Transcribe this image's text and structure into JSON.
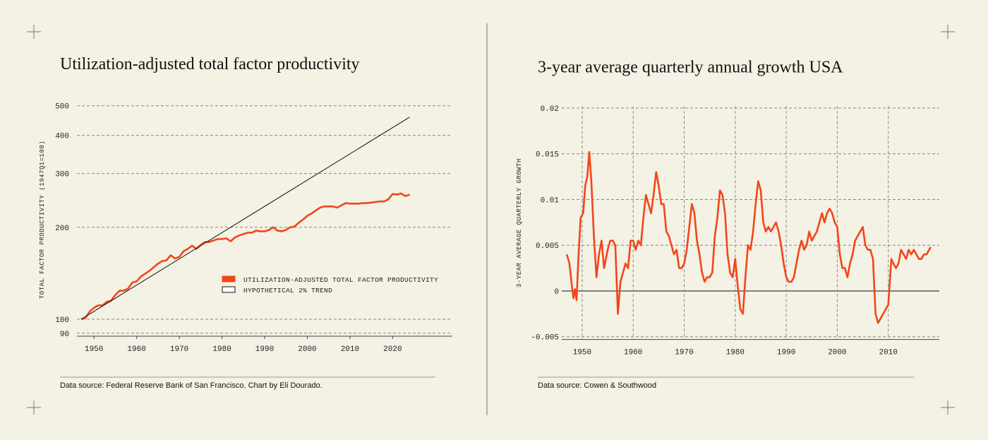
{
  "chart_data": [
    {
      "type": "line",
      "title": "Utilization-adjusted total factor productivity",
      "y_label": "TOTAL FACTOR PRODUCTIVITY (1947Q1=100)",
      "source": "Data source: Federal Reserve Bank of San Francisco. Chart by Eli Dourado.",
      "yscale": "log",
      "grid": true,
      "legend": "center",
      "xlim": [
        1946,
        2034
      ],
      "xticks": [
        1950,
        1960,
        1970,
        1980,
        1990,
        2000,
        2010,
        2020
      ],
      "ylim": [
        88,
        510
      ],
      "yticks": [
        90,
        100,
        200,
        300,
        400,
        500
      ],
      "series": [
        {
          "name": "UTILIZATION-ADJUSTED TOTAL FACTOR PRODUCTIVITY",
          "color": "#f2461a",
          "x": [
            1947,
            1948,
            1949,
            1950,
            1951,
            1952,
            1953,
            1954,
            1955,
            1956,
            1957,
            1958,
            1959,
            1960,
            1961,
            1962,
            1963,
            1964,
            1965,
            1966,
            1967,
            1968,
            1969,
            1970,
            1971,
            1972,
            1973,
            1974,
            1975,
            1976,
            1977,
            1978,
            1979,
            1980,
            1981,
            1982,
            1983,
            1984,
            1985,
            1986,
            1987,
            1988,
            1989,
            1990,
            1991,
            1992,
            1993,
            1994,
            1995,
            1996,
            1997,
            1998,
            1999,
            2000,
            2001,
            2002,
            2003,
            2004,
            2005,
            2006,
            2007,
            2008,
            2009,
            2010,
            2011,
            2012,
            2013,
            2014,
            2015,
            2016,
            2017,
            2018,
            2019,
            2020,
            2021,
            2022,
            2023,
            2024
          ],
          "values": [
            100,
            101,
            106,
            109,
            111,
            111,
            114,
            115,
            120,
            124,
            124,
            126,
            132,
            133,
            138,
            141,
            144,
            148,
            152,
            155,
            156,
            162,
            158,
            160,
            167,
            170,
            174,
            170,
            175,
            179,
            179,
            181,
            183,
            183,
            184,
            180,
            185,
            188,
            190,
            192,
            192,
            195,
            194,
            194,
            196,
            200,
            195,
            194,
            196,
            200,
            201,
            207,
            212,
            218,
            222,
            227,
            232,
            234,
            234,
            234,
            232,
            236,
            240,
            239,
            239,
            239,
            240,
            240,
            241,
            242,
            243,
            243,
            247,
            257,
            256,
            258,
            253,
            256
          ]
        },
        {
          "name": "HYPOTHETICAL 2% TREND",
          "color": "#111111",
          "x": [
            1947,
            2024
          ],
          "values": [
            100,
            459
          ]
        }
      ]
    },
    {
      "type": "line",
      "title": "3-year average quarterly annual growth USA",
      "y_label": "3-YEAR AVERAGE QUARTERLY GROWTH",
      "source": "Data source: Cowen & Southwood",
      "grid": true,
      "xlim": [
        1946,
        2020
      ],
      "xticks": [
        1950,
        1960,
        1970,
        1980,
        1990,
        2000,
        2010
      ],
      "ylim": [
        -0.0053,
        0.0202
      ],
      "yticks": [
        -0.005,
        0,
        0.005,
        0.01,
        0.015,
        0.02
      ],
      "x": [
        1947,
        1947.5,
        1948,
        1948.3,
        1948.6,
        1948.9,
        1949.3,
        1949.7,
        1950.2,
        1950.6,
        1951,
        1951.4,
        1951.8,
        1952.3,
        1952.8,
        1953.3,
        1953.8,
        1954.3,
        1955,
        1955.5,
        1956,
        1956.5,
        1957,
        1957.5,
        1958,
        1958.5,
        1959,
        1959.5,
        1960,
        1960.5,
        1961,
        1961.5,
        1962,
        1962.5,
        1963,
        1963.5,
        1964,
        1964.5,
        1965,
        1965.5,
        1966,
        1966.5,
        1967,
        1967.5,
        1968,
        1968.5,
        1969,
        1969.5,
        1970,
        1970.5,
        1971,
        1971.5,
        1972,
        1972.5,
        1973,
        1973.5,
        1974,
        1974.5,
        1975,
        1975.5,
        1976,
        1976.5,
        1977,
        1977.5,
        1978,
        1978.5,
        1979,
        1979.5,
        1980,
        1980.5,
        1981,
        1981.5,
        1982,
        1982.5,
        1983,
        1983.5,
        1984,
        1984.5,
        1985,
        1985.5,
        1986,
        1986.5,
        1987,
        1987.5,
        1988,
        1988.5,
        1989,
        1989.5,
        1990,
        1990.5,
        1991,
        1991.5,
        1992,
        1992.5,
        1993,
        1993.5,
        1994,
        1994.5,
        1995,
        1995.5,
        1996,
        1996.5,
        1997,
        1997.5,
        1998,
        1998.5,
        1999,
        1999.5,
        2000,
        2000.5,
        2001,
        2001.5,
        2002,
        2002.5,
        2003,
        2003.5,
        2004,
        2004.5,
        2005,
        2005.5,
        2006,
        2006.5,
        2007,
        2007.5,
        2008,
        2008.5,
        2009,
        2009.5,
        2010,
        2010.3,
        2010.6,
        2011,
        2011.5,
        2012,
        2012.5,
        2013,
        2013.5,
        2014,
        2014.5,
        2015,
        2015.5,
        2016,
        2016.5,
        2017,
        2017.5,
        2018,
        2018.3
      ],
      "series": [
        {
          "color": "#f2461a",
          "values": [
            0.004,
            0.003,
            0.0005,
            -0.0008,
            0.0002,
            -0.001,
            0.004,
            0.008,
            0.0085,
            0.0115,
            0.0125,
            0.0152,
            0.012,
            0.006,
            0.0015,
            0.004,
            0.0055,
            0.0025,
            0.0045,
            0.0055,
            0.0055,
            0.005,
            -0.0025,
            0.001,
            0.002,
            0.003,
            0.0025,
            0.0055,
            0.0055,
            0.0045,
            0.0055,
            0.005,
            0.008,
            0.0105,
            0.0095,
            0.0085,
            0.0105,
            0.013,
            0.0115,
            0.0095,
            0.0095,
            0.0065,
            0.006,
            0.005,
            0.004,
            0.0045,
            0.0025,
            0.0025,
            0.003,
            0.0045,
            0.007,
            0.0095,
            0.0085,
            0.0055,
            0.004,
            0.002,
            0.001,
            0.0015,
            0.0015,
            0.002,
            0.006,
            0.008,
            0.011,
            0.0105,
            0.0085,
            0.004,
            0.002,
            0.0015,
            0.0035,
            0.0005,
            -0.002,
            -0.0025,
            0.0015,
            0.005,
            0.0045,
            0.0065,
            0.0095,
            0.012,
            0.011,
            0.0075,
            0.0065,
            0.007,
            0.0065,
            0.007,
            0.0075,
            0.0065,
            0.005,
            0.003,
            0.0015,
            0.001,
            0.001,
            0.0015,
            0.003,
            0.0045,
            0.0055,
            0.0045,
            0.005,
            0.0065,
            0.0055,
            0.006,
            0.0065,
            0.0075,
            0.0085,
            0.0075,
            0.0085,
            0.009,
            0.0085,
            0.0075,
            0.007,
            0.004,
            0.0025,
            0.0025,
            0.0015,
            0.003,
            0.004,
            0.0055,
            0.006,
            0.0065,
            0.007,
            0.005,
            0.0045,
            0.0045,
            0.0035,
            -0.0025,
            -0.0035,
            -0.003,
            -0.0025,
            -0.002,
            -0.0015,
            0.001,
            0.0035,
            0.003,
            0.0025,
            0.003,
            0.0045,
            0.004,
            0.0035,
            0.0045,
            0.004,
            0.0045,
            0.004,
            0.0035,
            0.0035,
            0.004,
            0.004,
            0.0045,
            0.0048
          ]
        }
      ]
    }
  ]
}
